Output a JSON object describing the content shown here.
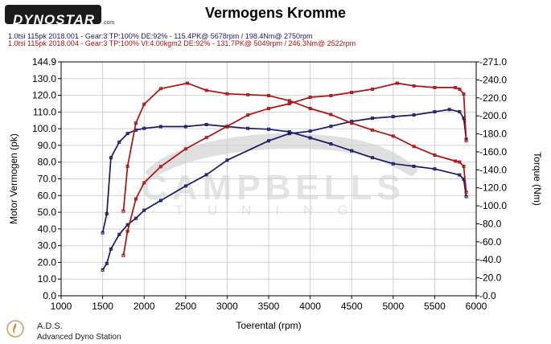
{
  "header": {
    "logo_text": "DYNOSTAR",
    "logo_suffix": ".com",
    "title": "Vermogens Kromme",
    "run1": "1.0tsi 115pk 2018.001 - Gear:3 TP:100% DE:92% - 115.4PK@ 5678rpm / 198.4Nm@ 2750rpm",
    "run2": "1.0tsi 115pk 2018.004 - Gear:3 TP:100% VI:4.00kgm2 DE:92% - 131.7PK@ 5049rpm / 246.3Nm@ 2522rpm"
  },
  "footer": {
    "title": "A.D.S.",
    "subtitle": "Advanced Dyno Station"
  },
  "watermark": {
    "line1": "CAMPBELLS",
    "line2": "TUNING"
  },
  "colors": {
    "run1": "#1a1a66",
    "run2": "#b01010",
    "plot_bg": "#ffffff",
    "grid": "#d0d0d0"
  },
  "chart_data": {
    "type": "line",
    "title": "Vermogens Kromme",
    "xlabel": "Toerental (rpm)",
    "ylabel": "Motor Vermogen (pk)",
    "y2label": "Torque (Nm)",
    "xlim": [
      1000,
      6000
    ],
    "ylim": [
      0,
      144.9
    ],
    "y2lim": [
      0,
      271.0
    ],
    "xticks": [
      "1000",
      "1500",
      "2000",
      "2500",
      "3000",
      "3500",
      "4000",
      "4500",
      "5000",
      "5500",
      "6000"
    ],
    "yticks": [
      "0.0",
      "10.0",
      "20.0",
      "30.0",
      "40.0",
      "50.0",
      "60.0",
      "70.0",
      "80.0",
      "90.0",
      "100.0",
      "110.0",
      "120.0",
      "130.0",
      "144.9"
    ],
    "y2ticks": [
      "-0.0",
      "-20.0",
      "-40.0",
      "-60.0",
      "-80.0",
      "-100.0",
      "-120.0",
      "-140.0",
      "-160.0",
      "-180.0",
      "-200.0",
      "-220.0",
      "-240.0",
      "-271.0"
    ],
    "grid": true,
    "series": [
      {
        "name": "1.0tsi 115pk 2018.001",
        "quantity": "power",
        "axis": "left",
        "x": [
          1500,
          1550,
          1600,
          1700,
          1800,
          1900,
          2000,
          2200,
          2500,
          2750,
          3000,
          3500,
          3750,
          4000,
          4250,
          4500,
          4750,
          5000,
          5250,
          5500,
          5678,
          5800,
          5850,
          5880
        ],
        "y": [
          16,
          20,
          29,
          38,
          44,
          48,
          53,
          59,
          68,
          75,
          84,
          96,
          100.5,
          102,
          105,
          108,
          110,
          111,
          112,
          114,
          115.4,
          114,
          110,
          97
        ]
      },
      {
        "name": "1.0tsi 115pk 2018.001",
        "quantity": "torque",
        "axis": "right",
        "x": [
          1500,
          1550,
          1600,
          1700,
          1800,
          1900,
          2000,
          2200,
          2500,
          2750,
          3000,
          3250,
          3500,
          3750,
          4000,
          4250,
          4500,
          4750,
          5000,
          5250,
          5500,
          5800,
          5850,
          5880
        ],
        "y": [
          73,
          95,
          160,
          178,
          188,
          192,
          194,
          196,
          196,
          198.4,
          196,
          194,
          193,
          190,
          183,
          176,
          168,
          160,
          153,
          150,
          147,
          140,
          135,
          115
        ]
      },
      {
        "name": "1.0tsi 115pk 2018.004",
        "quantity": "power",
        "axis": "left",
        "x": [
          1750,
          1800,
          1900,
          2000,
          2200,
          2500,
          2750,
          3000,
          3250,
          3500,
          3750,
          4000,
          4250,
          4500,
          4750,
          5049,
          5250,
          5500,
          5750,
          5800,
          5850,
          5880
        ],
        "y": [
          25,
          40,
          60,
          70,
          80,
          91,
          98,
          105,
          112,
          116,
          119,
          123,
          124,
          126,
          128,
          131.7,
          130,
          129,
          129,
          128,
          125,
          96
        ]
      },
      {
        "name": "1.0tsi 115pk 2018.004",
        "quantity": "torque",
        "axis": "right",
        "x": [
          1750,
          1800,
          1900,
          2000,
          2200,
          2522,
          2750,
          3000,
          3250,
          3500,
          3750,
          4000,
          4250,
          4500,
          4750,
          5000,
          5250,
          5500,
          5750,
          5800,
          5850,
          5880
        ],
        "y": [
          98,
          150,
          200,
          222,
          240,
          246.3,
          238,
          234,
          233,
          232,
          226,
          217,
          210,
          200,
          192,
          185,
          173,
          163,
          156,
          155,
          150,
          120
        ]
      }
    ]
  }
}
